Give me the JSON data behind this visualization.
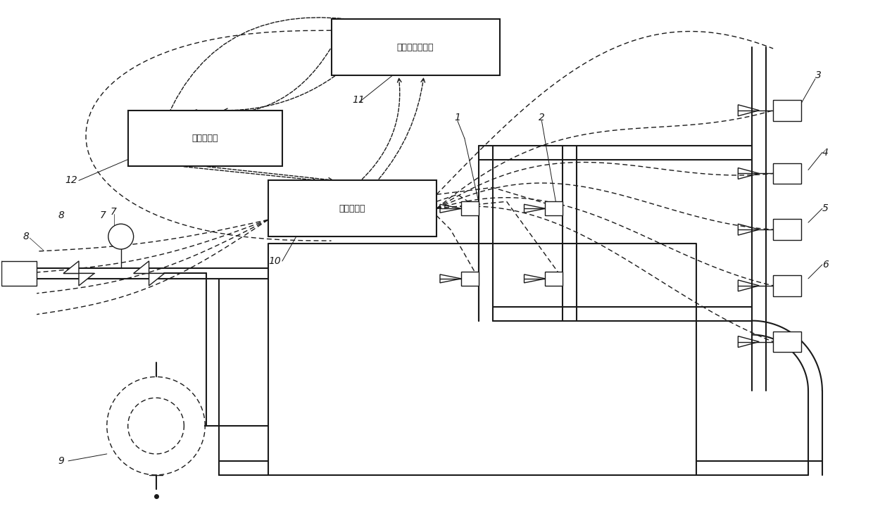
{
  "bg_color": "#ffffff",
  "line_color": "#1a1a1a",
  "box_labels": {
    "local_processor": "就地数据处理器",
    "data_transmitter": "数据传输器",
    "data_collector": "数据采集器"
  },
  "figsize": [
    12.4,
    7.26
  ],
  "dpi": 100,
  "xlim": [
    0,
    124
  ],
  "ylim": [
    0,
    72.6
  ]
}
